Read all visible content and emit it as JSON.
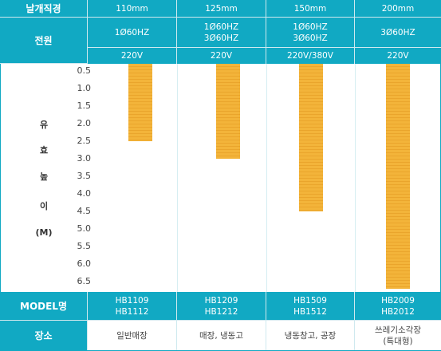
{
  "header": {
    "row1": {
      "label": "날개직경",
      "cols": [
        "110mm",
        "125mm",
        "150mm",
        "200mm"
      ]
    },
    "row2": {
      "label": "전원",
      "cols": [
        [
          "1Ø60HZ"
        ],
        [
          "1Ø60HZ",
          "3Ø60HZ"
        ],
        [
          "1Ø60HZ",
          "3Ø60HZ"
        ],
        [
          "3Ø60HZ"
        ]
      ]
    },
    "row3": {
      "cols": [
        "220V",
        "220V",
        "220V/380V",
        "220V"
      ]
    }
  },
  "ylabel": [
    "유",
    "효",
    "높",
    "이",
    "(M)"
  ],
  "footer": {
    "model": {
      "label": "MODEL명",
      "cols": [
        [
          "HB1109",
          "HB1112"
        ],
        [
          "HB1209",
          "HB1212"
        ],
        [
          "HB1509",
          "HB1512"
        ],
        [
          "HB2009",
          "HB2012"
        ]
      ]
    },
    "place": {
      "label": "장소",
      "cols": [
        [
          "일반매장"
        ],
        [
          "매장, 냉동고"
        ],
        [
          "냉동창고, 공장"
        ],
        [
          "쓰레기소각장",
          "(특대형)"
        ]
      ]
    }
  },
  "colors": {
    "teal": "#11a9c3",
    "bar": "#f3b43a",
    "text": "#444444"
  },
  "chart_data": {
    "type": "bar",
    "orientation": "vertical-inverted",
    "categories": [
      "110mm",
      "125mm",
      "150mm",
      "200mm"
    ],
    "values": [
      2.5,
      3.0,
      4.5,
      6.7
    ],
    "yticks": [
      "0.5",
      "1.0",
      "1.5",
      "2.0",
      "2.5",
      "3.0",
      "3.5",
      "4.0",
      "4.5",
      "5.0",
      "5.5",
      "6.0",
      "6.5"
    ],
    "ylim": [
      0.5,
      6.5
    ],
    "grid": false,
    "legend": "none"
  }
}
